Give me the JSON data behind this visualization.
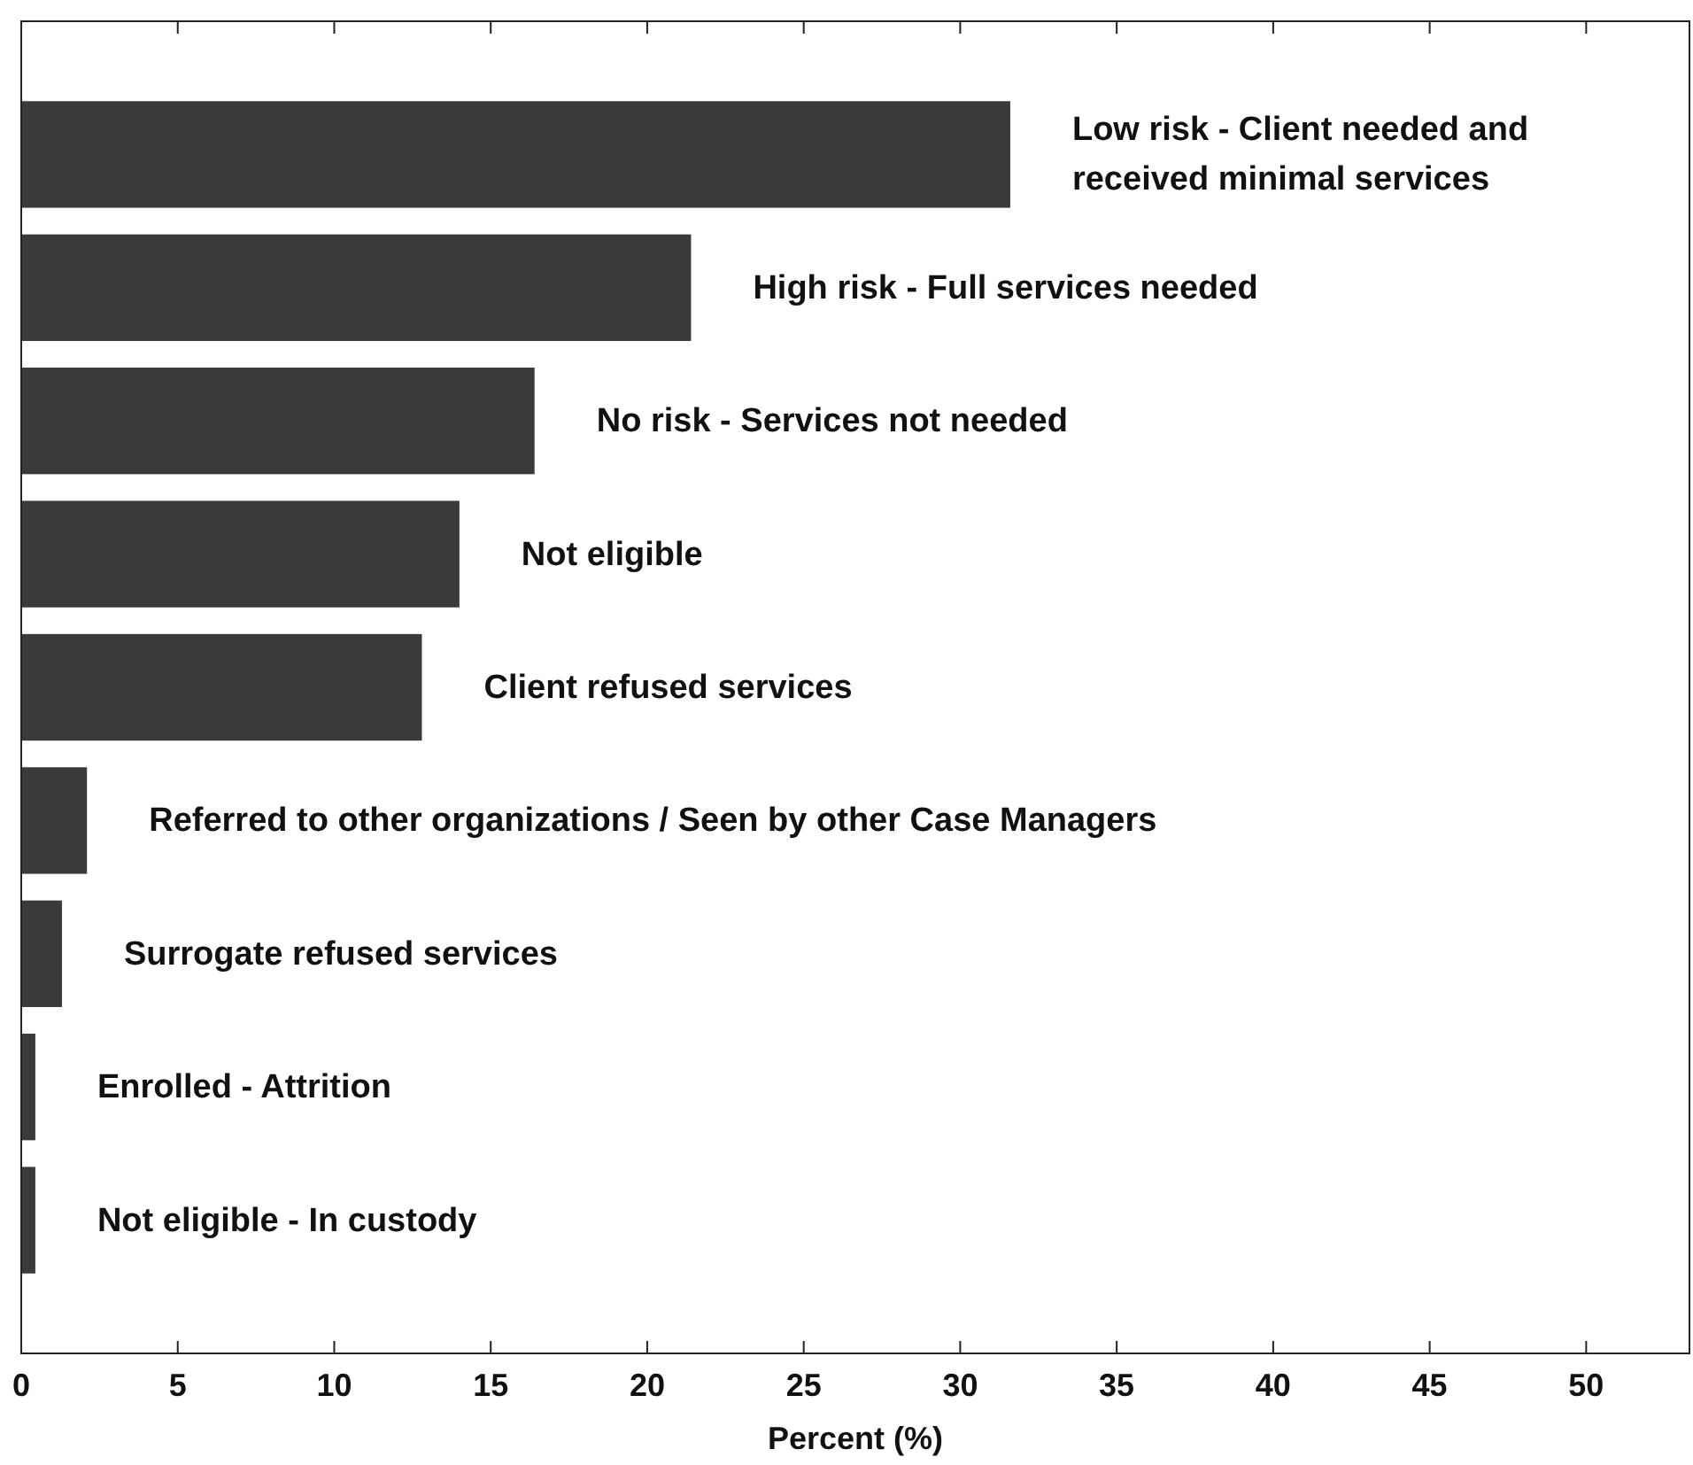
{
  "chart_data": {
    "type": "bar",
    "orientation": "horizontal",
    "xlabel": "Percent (%)",
    "categories": [
      "Low risk - Client needed and received minimal services",
      "High risk - Full services needed",
      "No risk - Services not needed",
      "Not eligible",
      "Client refused services",
      "Referred to other organizations / Seen by other Case Managers",
      "Surrogate refused services",
      "Enrolled - Attrition",
      "Not eligible - In custody"
    ],
    "values": [
      31.6,
      21.4,
      16.4,
      14.0,
      12.8,
      2.1,
      1.3,
      0.45,
      0.45
    ],
    "color": "#3a3a3a",
    "xlim": [
      0,
      53.3
    ],
    "xticks": [
      0,
      5,
      10,
      15,
      20,
      25,
      30,
      35,
      40,
      45,
      50
    ]
  }
}
